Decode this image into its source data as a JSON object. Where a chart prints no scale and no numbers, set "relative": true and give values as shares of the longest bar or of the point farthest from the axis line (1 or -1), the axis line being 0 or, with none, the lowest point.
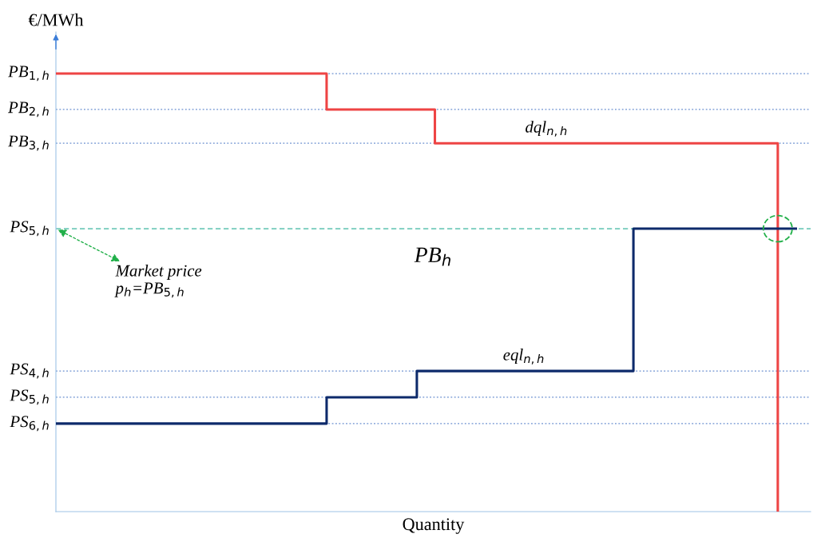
{
  "chart_data": {
    "type": "step",
    "relative": true,
    "xlabel": "Quantity",
    "ylabel": "€/MWh",
    "categories": [
      null,
      null,
      null,
      null,
      null,
      null,
      null,
      null,
      null,
      null,
      null,
      null,
      null,
      null,
      null,
      null,
      null,
      null,
      null,
      null,
      null,
      null,
      null,
      null,
      null,
      null,
      null,
      null,
      null,
      null,
      null,
      null,
      null,
      null,
      null,
      null,
      null,
      null,
      null,
      null,
      null,
      null
    ],
    "series": [
      {
        "color": "#ee4444",
        "values": [
          1,
          1,
          1,
          1,
          1,
          1,
          1,
          1,
          1,
          1,
          1,
          1,
          1,
          1,
          1,
          0.918,
          0.918,
          0.918,
          0.918,
          0.918,
          0.918,
          0.841,
          0.841,
          0.841,
          0.841,
          0.841,
          0.841,
          0.841,
          0.841,
          0.841,
          0.841,
          0.841,
          0.841,
          0.841,
          0.841,
          0.841,
          0.841,
          0.841,
          0.841,
          0.841,
          0,
          null
        ]
      },
      {
        "color": "#0d2a6b",
        "values": [
          0.201,
          0.201,
          0.201,
          0.201,
          0.201,
          0.201,
          0.201,
          0.201,
          0.201,
          0.201,
          0.201,
          0.201,
          0.201,
          0.201,
          0.201,
          0.261,
          0.261,
          0.261,
          0.261,
          0.261,
          0.321,
          0.321,
          0.321,
          0.321,
          0.321,
          0.321,
          0.321,
          0.321,
          0.321,
          0.321,
          0.321,
          0.321,
          0.646,
          0.646,
          0.646,
          0.646,
          0.646,
          0.646,
          0.646,
          0.646,
          0.646,
          0.646
        ]
      }
    ],
    "ref_lines": [
      {
        "axis": "y",
        "value": 1,
        "label": "PB$_{1,h}$",
        "color": "#6a8fd0",
        "line_style": "dotted"
      },
      {
        "axis": "y",
        "value": 0.918,
        "label": "PB$_{2,h}$",
        "color": "#6a8fd0",
        "line_style": "dotted"
      },
      {
        "axis": "y",
        "value": 0.841,
        "label": "PB$_{3,h}$",
        "color": "#6a8fd0",
        "line_style": "dotted"
      },
      {
        "axis": "y",
        "value": 0.646,
        "label": "PS$_{5,h}$",
        "color": "#3cb6a0",
        "line_style": "dashed"
      },
      {
        "axis": "y",
        "value": 0.321,
        "label": "PS$_{4,h}$",
        "color": "#6a8fd0",
        "line_style": "dotted"
      },
      {
        "axis": "y",
        "value": 0.261,
        "label": "PS$_{5,h}$",
        "color": "#6a8fd0",
        "line_style": "dotted"
      },
      {
        "axis": "y",
        "value": 0.201,
        "label": "PS$_{6,h}$",
        "color": "#6a8fd0",
        "line_style": "dotted"
      }
    ],
    "annotations": [
      {
        "text": "dql$_{n,h}$",
        "y": 0.841
      },
      {
        "text": "eql$_{n,h}$",
        "y": 0.321
      },
      "PB$_{h}$",
      {
        "text": "Market price\np$_{h}$=PB$_{5,h}$",
        "y": 0.646
      }
    ]
  }
}
